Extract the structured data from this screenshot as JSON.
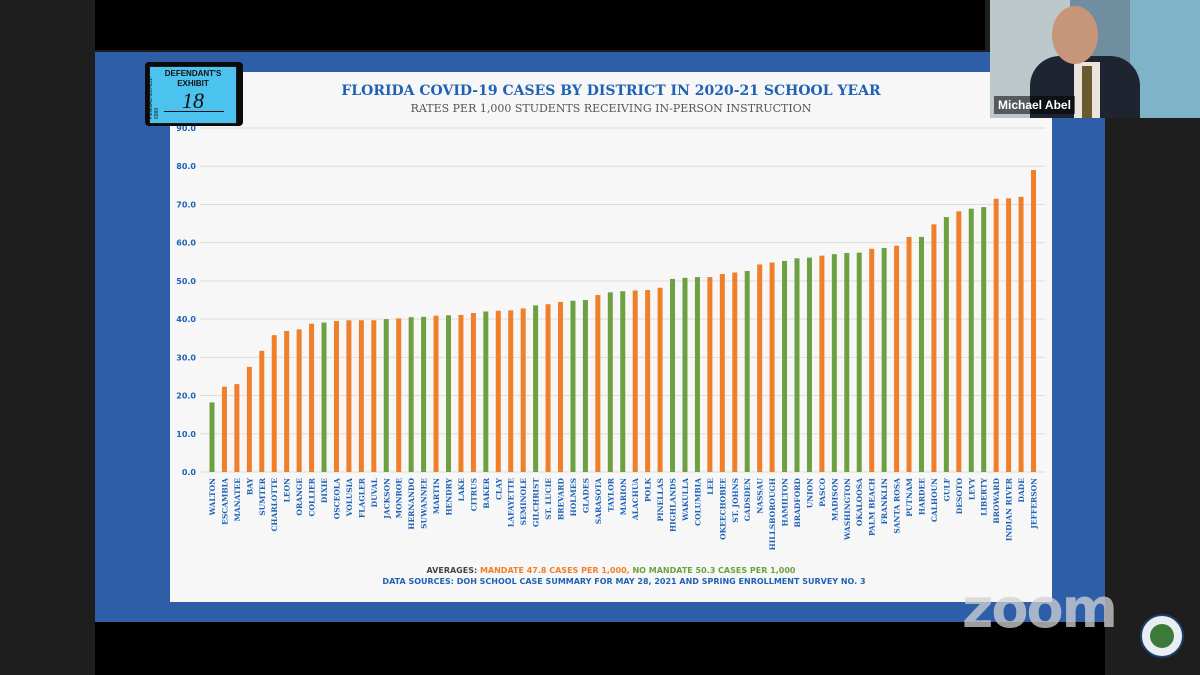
{
  "exhibit": {
    "line1": "DEFENDANT'S",
    "line2": "EXHIBIT",
    "number": "18",
    "side": "PENGAD 800-631-6989"
  },
  "participant": {
    "name": "Michael Abel"
  },
  "watermark": "zoom",
  "colors": {
    "mandate": "#f07f2a",
    "no_mandate": "#6da040",
    "title": "#1f62b5",
    "slide_bg": "#2f5ea8"
  },
  "chart_data": {
    "type": "bar",
    "title": "FLORIDA COVID-19 CASES BY DISTRICT IN 2020-21 SCHOOL YEAR",
    "subtitle": "RATES PER 1,000 STUDENTS RECEIVING IN-PERSON INSTRUCTION",
    "ylim": [
      0,
      90
    ],
    "yticks": [
      "0.0",
      "10.0",
      "20.0",
      "30.0",
      "40.0",
      "50.0",
      "60.0",
      "70.0",
      "80.0",
      "90.0"
    ],
    "grid": true,
    "categories": [
      "WALTON",
      "ESCAMBIA",
      "MANATEE",
      "BAY",
      "SUMTER",
      "CHARLOTTE",
      "LEON",
      "ORANGE",
      "COLLIER",
      "DIXIE",
      "OSCEOLA",
      "VOLUSIA",
      "FLAGLER",
      "DUVAL",
      "JACKSON",
      "MONROE",
      "HERNANDO",
      "SUWANNEE",
      "MARTIN",
      "HENDRY",
      "LAKE",
      "CITRUS",
      "BAKER",
      "CLAY",
      "LAFAYETTE",
      "SEMINOLE",
      "GILCHRIST",
      "ST. LUCIE",
      "BREVARD",
      "HOLMES",
      "GLADES",
      "SARASOTA",
      "TAYLOR",
      "MARION",
      "ALACHUA",
      "POLK",
      "PINELLAS",
      "HIGHLANDS",
      "WAKULLA",
      "COLUMBIA",
      "LEE",
      "OKEECHOBEE",
      "ST. JOHNS",
      "GADSDEN",
      "NASSAU",
      "HILLSBOROUGH",
      "HAMILTON",
      "BRADFORD",
      "UNION",
      "PASCO",
      "MADISON",
      "WASHINGTON",
      "OKALOOSA",
      "PALM BEACH",
      "FRANKLIN",
      "SANTA ROSA",
      "PUTNAM",
      "HARDEE",
      "CALHOUN",
      "GULF",
      "DESOTO",
      "LEVY",
      "LIBERTY",
      "BROWARD",
      "INDIAN RIVER",
      "DADE",
      "JEFFERSON"
    ],
    "values": [
      18.2,
      22.3,
      23.0,
      27.5,
      31.7,
      35.8,
      36.9,
      37.3,
      38.8,
      39.1,
      39.5,
      39.7,
      39.7,
      39.7,
      40.0,
      40.2,
      40.5,
      40.6,
      40.9,
      41.0,
      41.1,
      41.6,
      42.0,
      42.2,
      42.3,
      42.8,
      43.6,
      43.9,
      44.5,
      44.8,
      45.0,
      46.3,
      47.0,
      47.3,
      47.5,
      47.6,
      48.2,
      50.5,
      50.8,
      51.0,
      51.0,
      51.8,
      52.2,
      52.6,
      54.3,
      54.8,
      55.2,
      55.9,
      56.1,
      56.6,
      57.0,
      57.3,
      57.4,
      58.4,
      58.6,
      59.2,
      61.5,
      61.5,
      64.8,
      66.7,
      68.2,
      68.9,
      69.3,
      71.5,
      71.6,
      72.0,
      79.0
    ],
    "mandate": [
      false,
      true,
      true,
      true,
      true,
      true,
      true,
      true,
      true,
      false,
      true,
      true,
      true,
      true,
      false,
      true,
      false,
      false,
      true,
      false,
      true,
      true,
      false,
      true,
      true,
      true,
      false,
      true,
      true,
      false,
      false,
      true,
      false,
      false,
      true,
      true,
      true,
      false,
      false,
      false,
      true,
      true,
      true,
      false,
      true,
      true,
      false,
      false,
      false,
      true,
      false,
      false,
      false,
      true,
      false,
      true,
      true,
      false,
      true,
      false,
      true,
      false,
      false,
      true,
      true,
      true,
      true
    ],
    "averages_label": "AVERAGES:",
    "mandate_avg": "MANDATE 47.8 CASES PER 1,000,",
    "no_mandate_avg": "NO MANDATE 50.3 CASES PER 1,000",
    "sources": "DATA SOURCES: DOH SCHOOL CASE SUMMARY FOR MAY 28, 2021 AND SPRING ENROLLMENT SURVEY NO. 3"
  }
}
